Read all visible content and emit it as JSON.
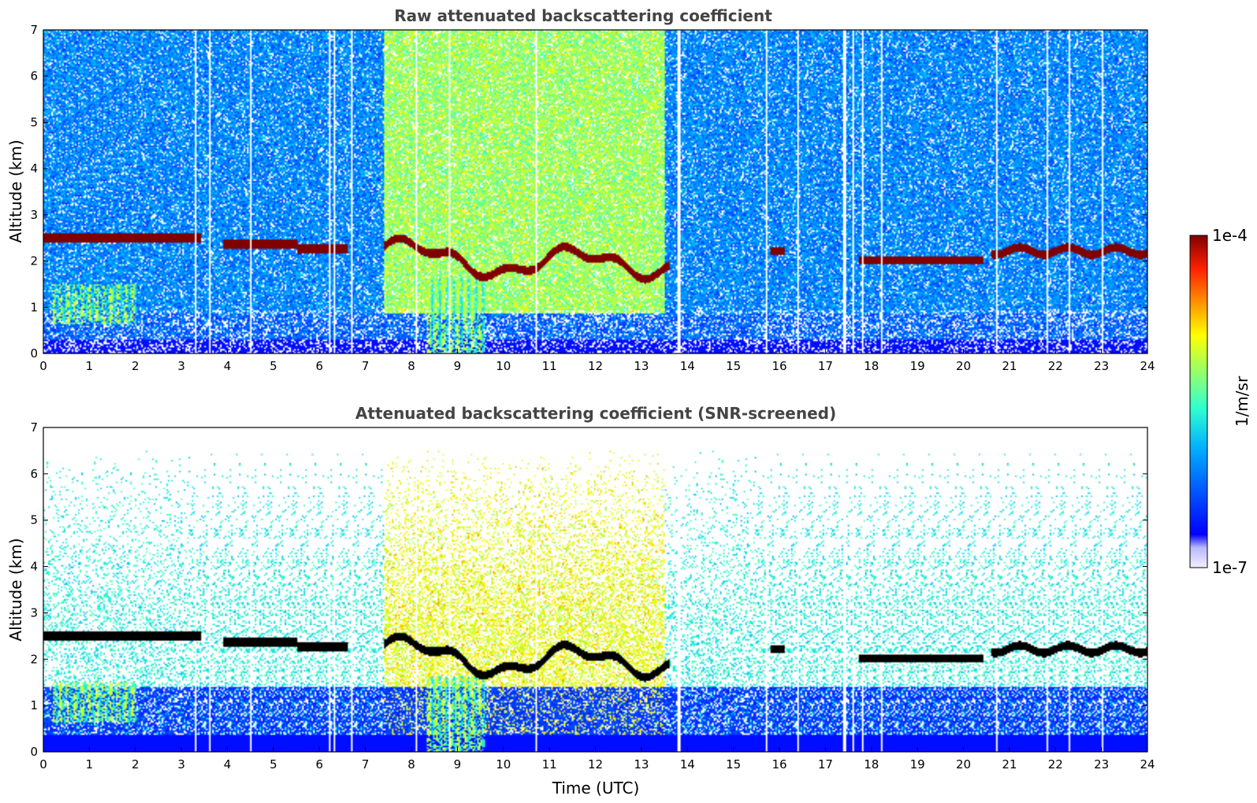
{
  "chart_data": [
    {
      "type": "heatmap",
      "title": "Raw attenuated backscattering coefficient",
      "xlabel": "",
      "ylabel": "Altitude (km)",
      "xlim": [
        0,
        24
      ],
      "ylim": [
        0,
        7
      ],
      "x_ticks": [
        "0",
        "1",
        "2",
        "3",
        "4",
        "5",
        "6",
        "7",
        "8",
        "9",
        "10",
        "11",
        "12",
        "13",
        "14",
        "15",
        "16",
        "17",
        "18",
        "19",
        "20",
        "21",
        "22",
        "23",
        "24"
      ],
      "y_ticks": [
        "0",
        "1",
        "2",
        "3",
        "4",
        "5",
        "6",
        "7"
      ],
      "cloud_layer_km": [
        {
          "t_start": 0.0,
          "t_end": 3.4,
          "altitude": 2.48
        },
        {
          "t_start": 3.9,
          "t_end": 6.6,
          "altitude": 2.35
        },
        {
          "t_start": 7.4,
          "t_end": 13.6,
          "altitude": 1.95
        },
        {
          "t_start": 15.8,
          "t_end": 16.1,
          "altitude": 2.2
        },
        {
          "t_start": 17.7,
          "t_end": 20.4,
          "altitude": 2.0
        },
        {
          "t_start": 20.6,
          "t_end": 24.0,
          "altitude": 2.2
        }
      ],
      "enhanced_period_utc": [
        7.4,
        13.5
      ]
    },
    {
      "type": "heatmap",
      "title": "Attenuated backscattering coefficient (SNR-screened)",
      "xlabel": "Time (UTC)",
      "ylabel": "Altitude (km)",
      "xlim": [
        0,
        24
      ],
      "ylim": [
        0,
        7
      ],
      "x_ticks": [
        "0",
        "1",
        "2",
        "3",
        "4",
        "5",
        "6",
        "7",
        "8",
        "9",
        "10",
        "11",
        "12",
        "13",
        "14",
        "15",
        "16",
        "17",
        "18",
        "19",
        "20",
        "21",
        "22",
        "23",
        "24"
      ],
      "y_ticks": [
        "0",
        "1",
        "2",
        "3",
        "4",
        "5",
        "6",
        "7"
      ]
    }
  ],
  "colorbar": {
    "max_label": "1e-4",
    "min_label": "1e-7",
    "unit": "1/m/sr",
    "colors": [
      "#f0f0ff",
      "#c8c8ff",
      "#0000ff",
      "#0060ff",
      "#00c8ff",
      "#40ffc0",
      "#a0ff60",
      "#ffff00",
      "#ffa000",
      "#ff3000",
      "#c00000",
      "#800000"
    ]
  }
}
